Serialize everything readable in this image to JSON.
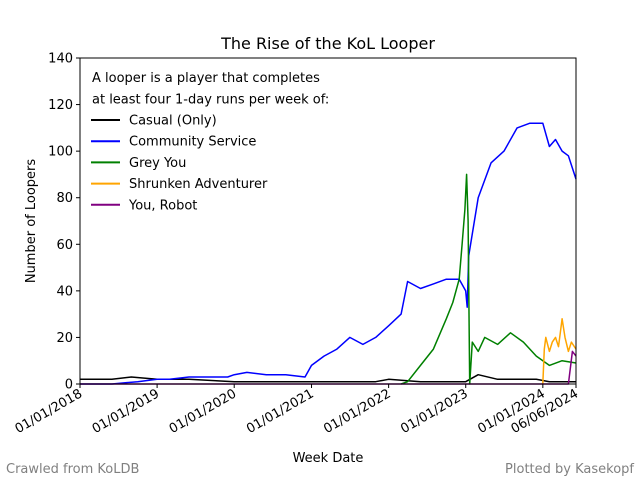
{
  "chart_data": {
    "type": "line",
    "title": "The Rise of the KoL Looper",
    "xlabel": "Week Date",
    "ylabel": "Number of Loopers",
    "xlim": [
      "2018-01-01",
      "2024-06-06"
    ],
    "ylim": [
      0,
      140
    ],
    "yticks": [
      0,
      20,
      40,
      60,
      80,
      100,
      120,
      140
    ],
    "xticks": [
      "01/01/2018",
      "01/01/2019",
      "01/01/2020",
      "01/01/2021",
      "01/01/2022",
      "01/01/2023",
      "01/01/2024",
      "06/06/2024"
    ],
    "grid": false,
    "legend_placement": "top-left",
    "legend_note": [
      "A looper is a player that completes",
      "at least four 1-day runs per week of:"
    ],
    "series": [
      {
        "name": "Casual (Only)",
        "color": "#000000",
        "x": [
          "2018-01-01",
          "2018-03-01",
          "2018-06-01",
          "2018-09-01",
          "2019-01-01",
          "2019-06-01",
          "2020-01-01",
          "2020-06-01",
          "2021-01-01",
          "2021-06-01",
          "2021-11-01",
          "2022-01-01",
          "2022-06-01",
          "2022-09-01",
          "2022-11-01",
          "2023-01-01",
          "2023-03-01",
          "2023-06-01",
          "2023-09-01",
          "2023-12-01",
          "2024-02-01",
          "2024-04-01",
          "2024-06-06"
        ],
        "y": [
          2,
          2,
          2,
          3,
          2,
          2,
          1,
          1,
          1,
          1,
          1,
          2,
          1,
          1,
          1,
          1,
          4,
          2,
          2,
          2,
          1,
          1,
          1
        ]
      },
      {
        "name": "Community Service",
        "color": "#0000ff",
        "x": [
          "2018-01-01",
          "2018-06-01",
          "2018-10-01",
          "2019-01-01",
          "2019-03-01",
          "2019-06-01",
          "2019-09-01",
          "2019-12-01",
          "2020-01-01",
          "2020-03-01",
          "2020-06-01",
          "2020-09-01",
          "2020-12-01",
          "2021-01-01",
          "2021-03-01",
          "2021-05-01",
          "2021-07-01",
          "2021-09-01",
          "2021-11-01",
          "2022-01-01",
          "2022-03-01",
          "2022-04-01",
          "2022-06-01",
          "2022-08-01",
          "2022-10-01",
          "2022-12-01",
          "2023-01-01",
          "2023-01-08",
          "2023-01-15",
          "2023-03-01",
          "2023-05-01",
          "2023-07-01",
          "2023-09-01",
          "2023-11-01",
          "2024-01-01",
          "2024-02-01",
          "2024-03-01",
          "2024-04-01",
          "2024-05-01",
          "2024-06-06"
        ],
        "y": [
          0,
          0,
          1,
          2,
          2,
          3,
          3,
          3,
          4,
          5,
          4,
          4,
          3,
          8,
          12,
          15,
          20,
          17,
          20,
          25,
          30,
          44,
          41,
          43,
          45,
          45,
          40,
          33,
          55,
          80,
          95,
          100,
          110,
          112,
          112,
          102,
          105,
          100,
          98,
          88
        ]
      },
      {
        "name": "Grey You",
        "color": "#008000",
        "x": [
          "2022-03-01",
          "2022-04-01",
          "2022-06-01",
          "2022-08-01",
          "2022-10-01",
          "2022-11-01",
          "2022-12-01",
          "2022-12-15",
          "2022-12-28",
          "2023-01-05",
          "2023-01-12",
          "2023-01-20",
          "2023-02-01",
          "2023-03-01",
          "2023-04-01",
          "2023-06-01",
          "2023-08-01",
          "2023-10-01",
          "2023-12-01",
          "2024-02-01",
          "2024-04-01",
          "2024-06-06"
        ],
        "y": [
          0,
          1,
          8,
          15,
          28,
          35,
          45,
          60,
          75,
          90,
          70,
          0,
          18,
          14,
          20,
          17,
          22,
          18,
          12,
          8,
          10,
          9
        ]
      },
      {
        "name": "Shrunken Adventurer",
        "color": "#ffa500",
        "x": [
          "2024-01-01",
          "2024-01-08",
          "2024-01-15",
          "2024-02-01",
          "2024-02-15",
          "2024-03-01",
          "2024-03-15",
          "2024-04-01",
          "2024-04-15",
          "2024-05-01",
          "2024-05-15",
          "2024-06-06"
        ],
        "y": [
          0,
          15,
          20,
          14,
          18,
          20,
          16,
          28,
          20,
          14,
          18,
          15
        ]
      },
      {
        "name": "You, Robot",
        "color": "#800080",
        "x": [
          "2018-01-01",
          "2024-05-01",
          "2024-05-20",
          "2024-06-06"
        ],
        "y": [
          0,
          0,
          14,
          12
        ]
      }
    ]
  },
  "footer": {
    "left": "Crawled from KoLDB",
    "right": "Plotted by Kasekopf"
  }
}
